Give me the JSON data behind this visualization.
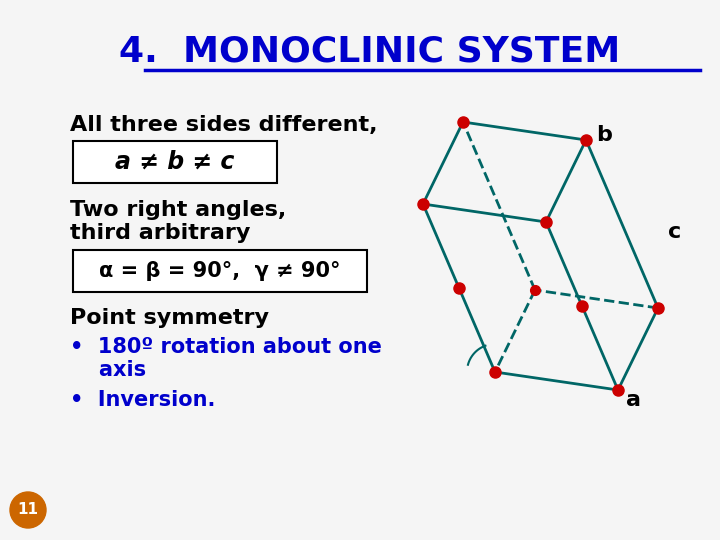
{
  "title": "4.  MONOCLINIC SYSTEM",
  "title_color": "#0000CC",
  "bg_color": "#F5F5F5",
  "text_color": "#000000",
  "blue_color": "#0000CC",
  "line1": "All three sides different,",
  "box1": "a ≠ b ≠ c",
  "line2_1": "Two right angles,",
  "line2_2": "third arbitrary",
  "box2": "α = β = 90°,  γ ≠ 90°",
  "line3": "Point symmetry",
  "bullet1a": "•  180º rotation about one",
  "bullet1b": "    axis",
  "bullet2": "•  Inversion.",
  "page_num": "11",
  "crystal_color": "#006666",
  "dot_color": "#CC0000",
  "label_b": "b",
  "label_c": "c",
  "label_a": "a"
}
